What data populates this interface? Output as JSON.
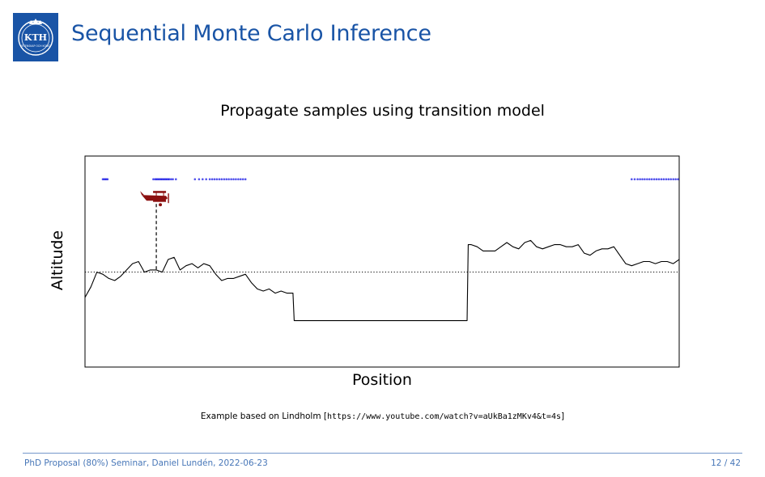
{
  "slide": {
    "title": "Sequential Monte Carlo Inference",
    "subtitle": "Propagate samples using transition model",
    "reference_prefix": "Example based on Lindholm [",
    "reference_url": "https://www.youtube.com/watch?v=aUkBa1zMKv4&t=4s",
    "reference_suffix": "]",
    "footer_left": "PhD Proposal (80%) Seminar, Daniel Lundén, 2022-06-23",
    "footer_right": "12 / 42",
    "logo_text": "KTH",
    "logo_subtext": "VETENSKAP OCH KONST"
  },
  "colors": {
    "accent": "#1954a6",
    "particles": "#1a1ae6",
    "plane": "#8b1010"
  },
  "chart_data": {
    "type": "line",
    "xlabel": "Position",
    "ylabel": "Altitude",
    "xlim": [
      0,
      100
    ],
    "ylim": [
      0,
      100
    ],
    "ground": {
      "x": [
        0,
        1,
        2,
        3,
        4,
        5,
        6,
        7,
        8,
        9,
        10,
        11,
        12,
        13,
        14,
        15,
        16,
        17,
        18,
        19,
        20,
        21,
        22,
        23,
        24,
        25,
        26,
        27,
        28,
        29,
        30,
        31,
        32,
        33,
        34,
        35,
        35.2,
        64.3,
        64.5,
        65,
        66,
        67,
        68,
        69,
        70,
        71,
        72,
        73,
        74,
        75,
        76,
        77,
        78,
        79,
        80,
        81,
        82,
        83,
        84,
        85,
        86,
        87,
        88,
        89,
        90,
        91,
        92,
        93,
        94,
        95,
        96,
        97,
        98,
        99,
        100
      ],
      "y": [
        33,
        38,
        45,
        44,
        42,
        41,
        43,
        46,
        49,
        50,
        45,
        46,
        46,
        45,
        51,
        52,
        46,
        48,
        49,
        47,
        49,
        48,
        44,
        41,
        42,
        42,
        43,
        44,
        40,
        37,
        36,
        37,
        35,
        36,
        35,
        35,
        22,
        22,
        58,
        58,
        57,
        55,
        55,
        55,
        57,
        59,
        57,
        56,
        59,
        60,
        57,
        56,
        57,
        58,
        58,
        57,
        57,
        58,
        54,
        53,
        55,
        56,
        56,
        57,
        53,
        49,
        48,
        49,
        50,
        50,
        49,
        50,
        50,
        49,
        51
      ]
    },
    "reference_level": 45,
    "plane": {
      "x": 12,
      "y": 80
    },
    "particles": {
      "x": [
        3,
        3.2,
        3.4,
        3.6,
        3.8,
        11.5,
        11.8,
        12.0,
        12.2,
        12.4,
        12.6,
        12.8,
        13.0,
        13.2,
        13.4,
        13.6,
        13.8,
        14.0,
        14.2,
        14.5,
        14.8,
        15.3,
        18.5,
        19.2,
        19.8,
        20.4,
        21.0,
        21.4,
        21.8,
        22.2,
        22.6,
        23.0,
        23.4,
        23.8,
        24.2,
        24.6,
        25.0,
        25.4,
        25.8,
        26.2,
        26.6,
        27.0,
        92.0,
        92.5,
        93.0,
        93.4,
        93.8,
        94.2,
        94.6,
        95.0,
        95.4,
        95.8,
        96.2,
        96.6,
        97.0,
        97.4,
        97.8,
        98.2,
        98.6,
        99.0,
        99.4,
        99.8
      ],
      "y": 89
    }
  }
}
